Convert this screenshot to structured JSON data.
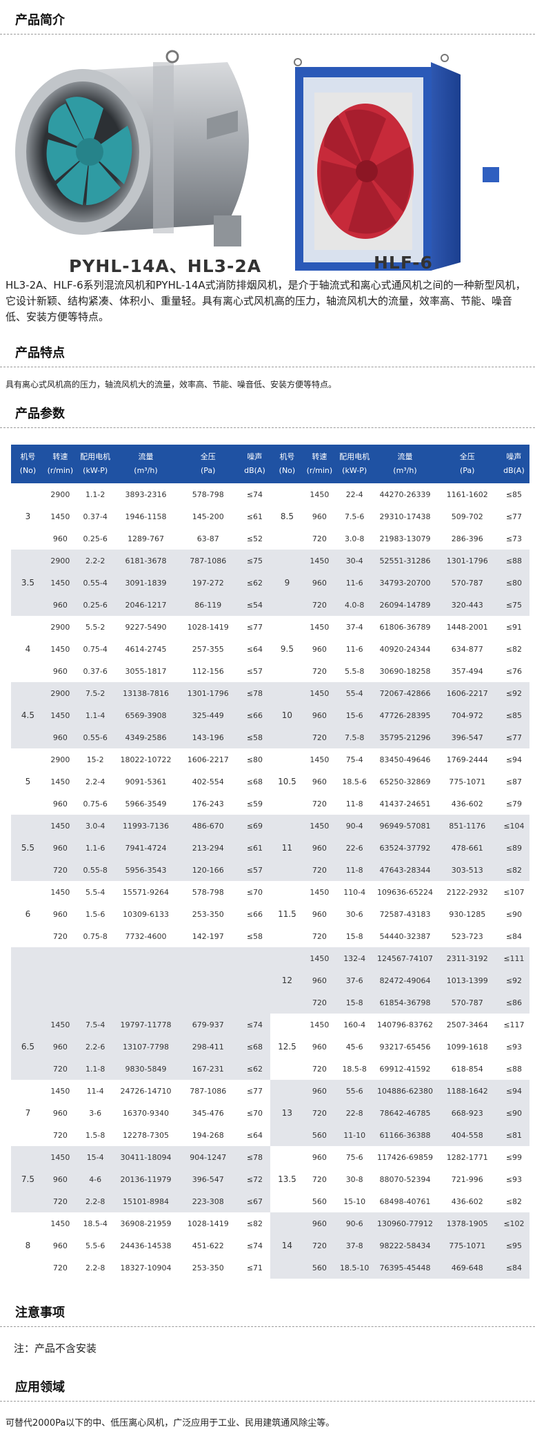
{
  "sections": {
    "intro_title": "产品简介",
    "features_title": "产品特点",
    "params_title": "产品参数",
    "notes_title": "注意事项",
    "application_title": "应用领域"
  },
  "images": {
    "left_caption": "PYHL-14A、HL3-2A",
    "right_caption": "HLF-6"
  },
  "intro_text": "HL3-2A、HLF-6系列混流风机和PYHL-14A式消防排烟风机，是介于轴流式和离心式通风机之间的一种新型风机，它设计新颖、结构紧凑、体积小、重量轻。具有离心式风机高的压力，轴流风机大的流量，效率高、节能、噪音低、安装方便等特点。",
  "features_text": "具有离心式风机高的压力，轴流风机大的流量，效率高、节能、噪音低、安装方便等特点。",
  "notes_text": "注：产品不含安装",
  "application_text": "可替代2000Pa以下的中、低压离心风机，广泛应用于工业、民用建筑通风除尘等。",
  "table_headers": [
    [
      "机号",
      "(No)"
    ],
    [
      "转速",
      "(r/min)"
    ],
    [
      "配用电机",
      "(kW-P)"
    ],
    [
      "流量",
      "(m³/h)"
    ],
    [
      "全压",
      "(Pa)"
    ],
    [
      "噪声",
      "dB(A)"
    ]
  ],
  "left_table": [
    {
      "no": "3",
      "rows": [
        [
          "2900",
          "1.1-2",
          "3893-2316",
          "578-798",
          "≤74"
        ],
        [
          "1450",
          "0.37-4",
          "1946-1158",
          "145-200",
          "≤61"
        ],
        [
          "960",
          "0.25-6",
          "1289-767",
          "63-87",
          "≤52"
        ]
      ]
    },
    {
      "no": "3.5",
      "rows": [
        [
          "2900",
          "2.2-2",
          "6181-3678",
          "787-1086",
          "≤75"
        ],
        [
          "1450",
          "0.55-4",
          "3091-1839",
          "197-272",
          "≤62"
        ],
        [
          "960",
          "0.25-6",
          "2046-1217",
          "86-119",
          "≤54"
        ]
      ]
    },
    {
      "no": "4",
      "rows": [
        [
          "2900",
          "5.5-2",
          "9227-5490",
          "1028-1419",
          "≤77"
        ],
        [
          "1450",
          "0.75-4",
          "4614-2745",
          "257-355",
          "≤64"
        ],
        [
          "960",
          "0.37-6",
          "3055-1817",
          "112-156",
          "≤57"
        ]
      ]
    },
    {
      "no": "4.5",
      "rows": [
        [
          "2900",
          "7.5-2",
          "13138-7816",
          "1301-1796",
          "≤78"
        ],
        [
          "1450",
          "1.1-4",
          "6569-3908",
          "325-449",
          "≤66"
        ],
        [
          "960",
          "0.55-6",
          "4349-2586",
          "143-196",
          "≤58"
        ]
      ]
    },
    {
      "no": "5",
      "rows": [
        [
          "2900",
          "15-2",
          "18022-10722",
          "1606-2217",
          "≤80"
        ],
        [
          "1450",
          "2.2-4",
          "9091-5361",
          "402-554",
          "≤68"
        ],
        [
          "960",
          "0.75-6",
          "5966-3549",
          "176-243",
          "≤59"
        ]
      ]
    },
    {
      "no": "5.5",
      "rows": [
        [
          "1450",
          "3.0-4",
          "11993-7136",
          "486-670",
          "≤69"
        ],
        [
          "960",
          "1.1-6",
          "7941-4724",
          "213-294",
          "≤61"
        ],
        [
          "720",
          "0.55-8",
          "5956-3543",
          "120-166",
          "≤57"
        ]
      ]
    },
    {
      "no": "6",
      "rows": [
        [
          "1450",
          "5.5-4",
          "15571-9264",
          "578-798",
          "≤70"
        ],
        [
          "960",
          "1.5-6",
          "10309-6133",
          "253-350",
          "≤66"
        ],
        [
          "720",
          "0.75-8",
          "7732-4600",
          "142-197",
          "≤58"
        ]
      ]
    },
    {
      "no": "6.5",
      "rows": [
        [
          "1450",
          "7.5-4",
          "19797-11778",
          "679-937",
          "≤74"
        ],
        [
          "960",
          "2.2-6",
          "13107-7798",
          "298-411",
          "≤68"
        ],
        [
          "720",
          "1.1-8",
          "9830-5849",
          "167-231",
          "≤62"
        ]
      ]
    },
    {
      "no": "7",
      "rows": [
        [
          "1450",
          "11-4",
          "24726-14710",
          "787-1086",
          "≤77"
        ],
        [
          "960",
          "3-6",
          "16370-9340",
          "345-476",
          "≤70"
        ],
        [
          "720",
          "1.5-8",
          "12278-7305",
          "194-268",
          "≤64"
        ]
      ]
    },
    {
      "no": "7.5",
      "rows": [
        [
          "1450",
          "15-4",
          "30411-18094",
          "904-1247",
          "≤78"
        ],
        [
          "960",
          "4-6",
          "20136-11979",
          "396-547",
          "≤72"
        ],
        [
          "720",
          "2.2-8",
          "15101-8984",
          "223-308",
          "≤67"
        ]
      ]
    },
    {
      "no": "8",
      "rows": [
        [
          "1450",
          "18.5-4",
          "36908-21959",
          "1028-1419",
          "≤82"
        ],
        [
          "960",
          "5.5-6",
          "24436-14538",
          "451-622",
          "≤74"
        ],
        [
          "720",
          "2.2-8",
          "18327-10904",
          "253-350",
          "≤71"
        ]
      ]
    }
  ],
  "right_table": [
    {
      "no": "8.5",
      "rows": [
        [
          "1450",
          "22-4",
          "44270-26339",
          "1161-1602",
          "≤85"
        ],
        [
          "960",
          "7.5-6",
          "29310-17438",
          "509-702",
          "≤77"
        ],
        [
          "720",
          "3.0-8",
          "21983-13079",
          "286-396",
          "≤73"
        ]
      ]
    },
    {
      "no": "9",
      "rows": [
        [
          "1450",
          "30-4",
          "52551-31286",
          "1301-1796",
          "≤88"
        ],
        [
          "960",
          "11-6",
          "34793-20700",
          "570-787",
          "≤80"
        ],
        [
          "720",
          "4.0-8",
          "26094-14789",
          "320-443",
          "≤75"
        ]
      ]
    },
    {
      "no": "9.5",
      "rows": [
        [
          "1450",
          "37-4",
          "61806-36789",
          "1448-2001",
          "≤91"
        ],
        [
          "960",
          "11-6",
          "40920-24344",
          "634-877",
          "≤82"
        ],
        [
          "720",
          "5.5-8",
          "30690-18258",
          "357-494",
          "≤76"
        ]
      ]
    },
    {
      "no": "10",
      "rows": [
        [
          "1450",
          "55-4",
          "72067-42866",
          "1606-2217",
          "≤92"
        ],
        [
          "960",
          "15-6",
          "47726-28395",
          "704-972",
          "≤85"
        ],
        [
          "720",
          "7.5-8",
          "35795-21296",
          "396-547",
          "≤77"
        ]
      ]
    },
    {
      "no": "10.5",
      "rows": [
        [
          "1450",
          "75-4",
          "83450-49646",
          "1769-2444",
          "≤94"
        ],
        [
          "960",
          "18.5-6",
          "65250-32869",
          "775-1071",
          "≤87"
        ],
        [
          "720",
          "11-8",
          "41437-24651",
          "436-602",
          "≤79"
        ]
      ]
    },
    {
      "no": "11",
      "rows": [
        [
          "1450",
          "90-4",
          "96949-57081",
          "851-1176",
          "≤104"
        ],
        [
          "960",
          "22-6",
          "63524-37792",
          "478-661",
          "≤89"
        ],
        [
          "720",
          "11-8",
          "47643-28344",
          "303-513",
          "≤82"
        ]
      ]
    },
    {
      "no": "11.5",
      "rows": [
        [
          "1450",
          "110-4",
          "109636-65224",
          "2122-2932",
          "≤107"
        ],
        [
          "960",
          "30-6",
          "72587-43183",
          "930-1285",
          "≤90"
        ],
        [
          "720",
          "15-8",
          "54440-32387",
          "523-723",
          "≤84"
        ]
      ]
    },
    {
      "no": "12",
      "rows": [
        [
          "1450",
          "132-4",
          "124567-74107",
          "2311-3192",
          "≤111"
        ],
        [
          "960",
          "37-6",
          "82472-49064",
          "1013-1399",
          "≤92"
        ],
        [
          "720",
          "15-8",
          "61854-36798",
          "570-787",
          "≤86"
        ]
      ]
    },
    {
      "no": "12.5",
      "rows": [
        [
          "1450",
          "160-4",
          "140796-83762",
          "2507-3464",
          "≤117"
        ],
        [
          "960",
          "45-6",
          "93217-65456",
          "1099-1618",
          "≤93"
        ],
        [
          "720",
          "18.5-8",
          "69912-41592",
          "618-854",
          "≤88"
        ]
      ]
    },
    {
      "no": "13",
      "rows": [
        [
          "960",
          "55-6",
          "104886-62380",
          "1188-1642",
          "≤94"
        ],
        [
          "720",
          "22-8",
          "78642-46785",
          "668-923",
          "≤90"
        ],
        [
          "560",
          "11-10",
          "61166-36388",
          "404-558",
          "≤81"
        ]
      ]
    },
    {
      "no": "13.5",
      "rows": [
        [
          "960",
          "75-6",
          "117426-69859",
          "1282-1771",
          "≤99"
        ],
        [
          "720",
          "30-8",
          "88070-52394",
          "721-996",
          "≤93"
        ],
        [
          "560",
          "15-10",
          "68498-40761",
          "436-602",
          "≤82"
        ]
      ]
    },
    {
      "no": "14",
      "rows": [
        [
          "960",
          "90-6",
          "130960-77912",
          "1378-1905",
          "≤102"
        ],
        [
          "720",
          "37-8",
          "98222-58434",
          "775-1071",
          "≤95"
        ],
        [
          "560",
          "18.5-10",
          "76395-45448",
          "469-648",
          "≤84"
        ]
      ]
    }
  ],
  "colors": {
    "header_blue": "#1f52a3",
    "row_gray": "#e3e5ea",
    "dashed_line": "#9a9a9a"
  }
}
